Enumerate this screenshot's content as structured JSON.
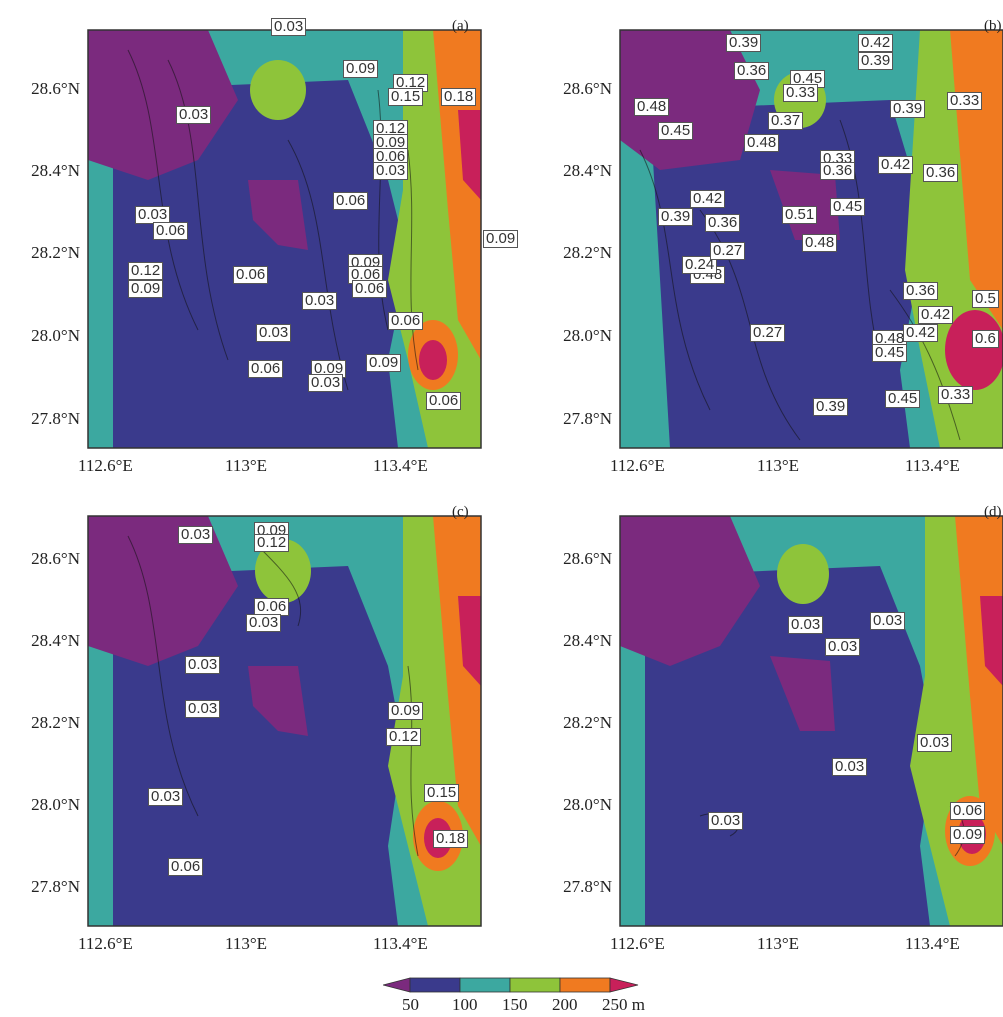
{
  "chart_data": [
    {
      "type": "heatmap",
      "panel": "(a)",
      "y_ticks": [
        "28.6°N",
        "28.4°N",
        "28.2°N",
        "28.0°N",
        "27.8°N"
      ],
      "x_ticks": [
        "112.6°E",
        "113°E",
        "113.4°E"
      ],
      "contour_labels": [
        "0.03",
        "0.09",
        "0.12",
        "0.15",
        "0.18",
        "0.03",
        "0.12",
        "0.09",
        "0.06",
        "0.03",
        "0.06",
        "0.03",
        "0.06",
        "0.09",
        "0.09",
        "0.06",
        "0.06",
        "0.12",
        "0.09",
        "0.06",
        "0.03",
        "0.03",
        "0.06",
        "0.09",
        "0.03",
        "0.09",
        "0.06",
        "0.03",
        "0.06"
      ]
    },
    {
      "type": "heatmap",
      "panel": "(b)",
      "y_ticks": [
        "28.6°N",
        "28.4°N",
        "28.2°N",
        "28.0°N",
        "27.8°N"
      ],
      "x_ticks": [
        "112.6°E",
        "113°E",
        "113.4°E"
      ],
      "contour_labels": [
        "0.39",
        "0.42",
        "0.39",
        "0.36",
        "0.45",
        "0.33",
        "0.48",
        "0.45",
        "0.39",
        "0.33",
        "0.37",
        "0.48",
        "0.33",
        "0.36",
        "0.42",
        "0.36",
        "0.42",
        "0.39",
        "0.36",
        "0.51",
        "0.45",
        "0.48",
        "0.48",
        "0.24",
        "0.27",
        "0.36",
        "0.42",
        "0.27",
        "0.48",
        "0.42",
        "0.45",
        "0.39",
        "0.5",
        "0.6",
        "0.39",
        "0.45",
        "0.33"
      ]
    },
    {
      "type": "heatmap",
      "panel": "(c)",
      "y_ticks": [
        "28.6°N",
        "28.4°N",
        "28.2°N",
        "28.0°N",
        "27.8°N"
      ],
      "x_ticks": [
        "112.6°E",
        "113°E",
        "113.4°E"
      ],
      "contour_labels": [
        "0.03",
        "0.09",
        "0.12",
        "0.06",
        "0.03",
        "0.03",
        "0.03",
        "0.09",
        "0.12",
        "0.03",
        "0.15",
        "0.18",
        "0.06"
      ]
    },
    {
      "type": "heatmap",
      "panel": "(d)",
      "y_ticks": [
        "28.6°N",
        "28.4°N",
        "28.2°N",
        "28.0°N",
        "27.8°N"
      ],
      "x_ticks": [
        "112.6°E",
        "113°E",
        "113.4°E"
      ],
      "contour_labels": [
        "0.03",
        "0.03",
        "0.03",
        "0.03",
        "0.03",
        "0.03",
        "0.06",
        "0.09"
      ]
    }
  ],
  "panels": [
    {
      "label": "(a)",
      "x_ticks": [
        "112.6°E",
        "113°E",
        "113.4°E"
      ],
      "y_ticks": [
        "28.6°N",
        "28.4°N",
        "28.2°N",
        "28.0°N",
        "27.8°N"
      ]
    },
    {
      "label": "(b)",
      "x_ticks": [
        "112.6°E",
        "113°E",
        "113.4°E"
      ],
      "y_ticks": [
        "28.6°N",
        "28.4°N",
        "28.2°N",
        "28.0°N",
        "27.8°N"
      ]
    },
    {
      "label": "(c)",
      "x_ticks": [
        "112.6°E",
        "113°E",
        "113.4°E"
      ],
      "y_ticks": [
        "28.6°N",
        "28.4°N",
        "28.2°N",
        "28.0°N",
        "27.8°N"
      ]
    },
    {
      "label": "(d)",
      "x_ticks": [
        "112.6°E",
        "113°E",
        "113.4°E"
      ],
      "y_ticks": [
        "28.6°N",
        "28.4°N",
        "28.2°N",
        "28.0°N",
        "27.8°N"
      ]
    }
  ],
  "colorbar": {
    "ticks": [
      "50",
      "100",
      "150",
      "200",
      "250 m"
    ],
    "colors": [
      "#7b2a7e",
      "#3a3a8c",
      "#3ca8a0",
      "#8ec43a",
      "#f07a20",
      "#c8205a"
    ]
  }
}
